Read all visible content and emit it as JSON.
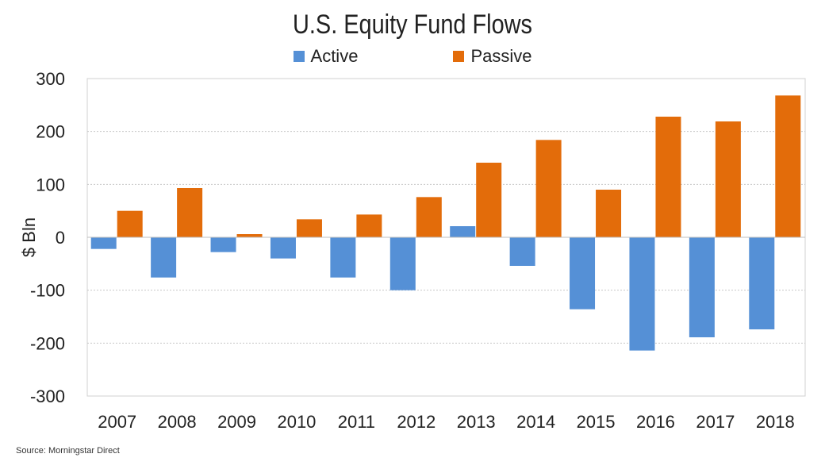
{
  "chart_data": {
    "type": "bar",
    "title": "U.S. Equity Fund Flows",
    "xlabel": "",
    "ylabel": "$ Bln",
    "ylim": [
      -300,
      300
    ],
    "yticks": [
      300,
      200,
      100,
      0,
      -100,
      -200,
      -300
    ],
    "grid": true,
    "legend_placement": "top",
    "categories": [
      "2007",
      "2008",
      "2009",
      "2010",
      "2011",
      "2012",
      "2013",
      "2014",
      "2015",
      "2016",
      "2017",
      "2018"
    ],
    "series": [
      {
        "name": "Active",
        "color": "#5590D6",
        "values": [
          -22,
          -76,
          -28,
          -40,
          -76,
          -100,
          21,
          -54,
          -136,
          -214,
          -189,
          -174
        ]
      },
      {
        "name": "Passive",
        "color": "#E36C0A",
        "values": [
          50,
          93,
          6,
          34,
          43,
          76,
          141,
          184,
          90,
          228,
          219,
          268
        ]
      }
    ],
    "source": "Source: Morningstar Direct"
  }
}
